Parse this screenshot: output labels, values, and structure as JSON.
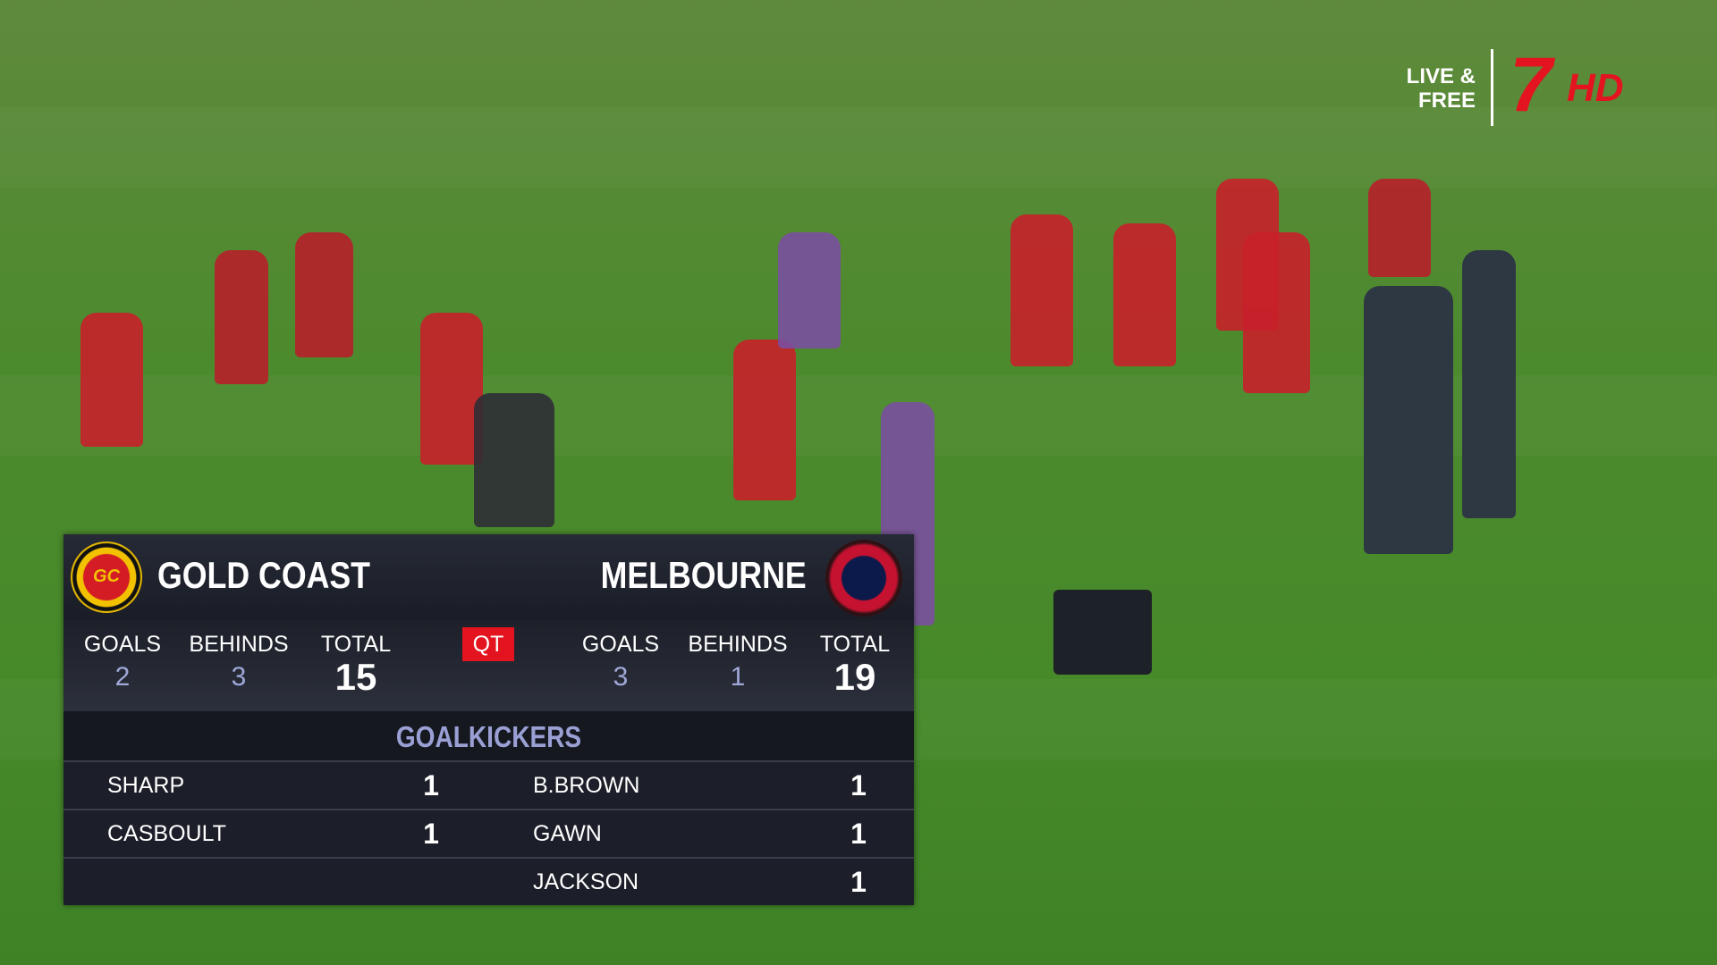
{
  "broadcast": {
    "tagline_lines": [
      "LIVE &",
      "FREE"
    ],
    "channel": "7",
    "quality": "HD"
  },
  "scoreboard": {
    "home": {
      "name": "GOLD COAST",
      "logo": "GC",
      "goals": 2,
      "behinds": 3,
      "total": 15
    },
    "away": {
      "name": "MELBOURNE",
      "goals": 3,
      "behinds": 1,
      "total": 19
    },
    "labels": {
      "goals": "GOALS",
      "behinds": "BEHINDS",
      "total": "TOTAL"
    },
    "period": "QT",
    "goalkickers_title": "GOALKICKERS",
    "home_goalkickers": [
      {
        "name": "SHARP",
        "goals": 1
      },
      {
        "name": "CASBOULT",
        "goals": 1
      }
    ],
    "away_goalkickers": [
      {
        "name": "B.BROWN",
        "goals": 1
      },
      {
        "name": "GAWN",
        "goals": 1
      },
      {
        "name": "JACKSON",
        "goals": 1
      }
    ]
  }
}
